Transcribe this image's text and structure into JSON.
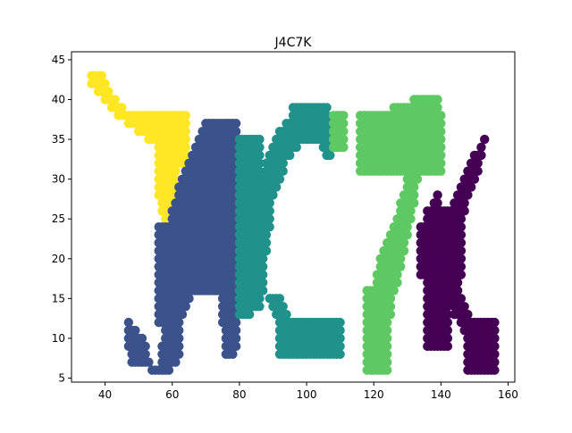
{
  "chart_data": {
    "type": "scatter",
    "title": "J4C7K",
    "xlabel": "",
    "ylabel": "",
    "xlim": [
      30,
      162
    ],
    "ylim": [
      4.5,
      46
    ],
    "xticks": [
      40,
      60,
      80,
      100,
      120,
      140,
      160
    ],
    "yticks": [
      5,
      10,
      15,
      20,
      25,
      30,
      35,
      40,
      45
    ],
    "grid": false,
    "legend": "none",
    "series": [
      {
        "color": "#fde725",
        "strokes": [
          {
            "shape": "poly",
            "pts": [
              [
                36,
                44
              ],
              [
                38,
                44
              ],
              [
                42,
                41
              ],
              [
                46,
                39
              ],
              [
                56,
                39
              ],
              [
                60,
                36
              ],
              [
                62,
                32
              ],
              [
                62,
                27
              ],
              [
                58,
                23
              ],
              [
                56,
                28
              ],
              [
                56,
                34
              ],
              [
                50,
                36
              ],
              [
                44,
                38
              ],
              [
                36,
                42
              ]
            ]
          },
          {
            "shape": "rect",
            "x0": 56,
            "x1": 64,
            "y0": 32,
            "y1": 38
          }
        ]
      },
      {
        "color": "#3b528b",
        "strokes": [
          {
            "shape": "poly",
            "pts": [
              [
                48,
                7
              ],
              [
                56,
                6
              ],
              [
                58,
                12
              ],
              [
                58,
                22
              ],
              [
                60,
                26
              ],
              [
                62,
                29
              ],
              [
                66,
                33
              ],
              [
                70,
                37
              ],
              [
                78,
                38
              ],
              [
                80,
                34
              ],
              [
                79,
                8
              ],
              [
                76,
                8
              ],
              [
                74,
                16
              ],
              [
                66,
                16
              ],
              [
                63,
                12
              ],
              [
                62,
                7
              ],
              [
                60,
                6
              ],
              [
                54,
                6
              ],
              [
                52,
                10
              ],
              [
                48,
                12
              ],
              [
                47,
                13
              ],
              [
                47,
                9
              ]
            ]
          },
          {
            "shape": "rect",
            "x0": 62,
            "x1": 80,
            "y0": 16,
            "y1": 22
          },
          {
            "shape": "rect",
            "x0": 56,
            "x1": 62,
            "y0": 12,
            "y1": 24
          },
          {
            "shape": "rect",
            "x0": 70,
            "x1": 79,
            "y0": 22,
            "y1": 37
          }
        ]
      },
      {
        "color": "#21918c",
        "strokes": [
          {
            "shape": "poly",
            "pts": [
              [
                80,
                14
              ],
              [
                80,
                20
              ],
              [
                84,
                27
              ],
              [
                88,
                32
              ],
              [
                92,
                36
              ],
              [
                98,
                39
              ],
              [
                104,
                39
              ],
              [
                108,
                37
              ],
              [
                108,
                33
              ],
              [
                106,
                33
              ],
              [
                104,
                35
              ],
              [
                98,
                34
              ],
              [
                94,
                32
              ],
              [
                90,
                27
              ],
              [
                88,
                20
              ],
              [
                88,
                16
              ],
              [
                92,
                12
              ],
              [
                94,
                8
              ],
              [
                110,
                8
              ],
              [
                110,
                12
              ],
              [
                106,
                13
              ],
              [
                100,
                13
              ],
              [
                98,
                10
              ],
              [
                94,
                14
              ],
              [
                92,
                16
              ],
              [
                86,
                15
              ],
              [
                84,
                13
              ],
              [
                80,
                13
              ]
            ]
          },
          {
            "shape": "rect",
            "x0": 80,
            "x1": 86,
            "y0": 14,
            "y1": 35
          },
          {
            "shape": "rect",
            "x0": 92,
            "x1": 110,
            "y0": 8,
            "y1": 12
          },
          {
            "shape": "rect",
            "x0": 96,
            "x1": 106,
            "y0": 36,
            "y1": 39
          }
        ]
      },
      {
        "color": "#5ec962",
        "strokes": [
          {
            "shape": "poly",
            "pts": [
              [
                116,
                38
              ],
              [
                126,
                39
              ],
              [
                132,
                40
              ],
              [
                138,
                41
              ],
              [
                140,
                41
              ],
              [
                140,
                37
              ],
              [
                136,
                35
              ],
              [
                134,
                32
              ],
              [
                132,
                26
              ],
              [
                130,
                22
              ],
              [
                128,
                18
              ],
              [
                126,
                15
              ],
              [
                124,
                10
              ],
              [
                123,
                7
              ],
              [
                120,
                6
              ],
              [
                118,
                8
              ],
              [
                118,
                12
              ],
              [
                120,
                16
              ],
              [
                122,
                20
              ],
              [
                126,
                24
              ],
              [
                128,
                27
              ],
              [
                130,
                30
              ],
              [
                134,
                34
              ],
              [
                134,
                36
              ],
              [
                126,
                35
              ],
              [
                122,
                33
              ],
              [
                118,
                31
              ],
              [
                116,
                31
              ]
            ]
          },
          {
            "shape": "rect",
            "x0": 116,
            "x1": 140,
            "y0": 31,
            "y1": 38
          },
          {
            "shape": "rect",
            "x0": 108,
            "x1": 111,
            "y0": 34,
            "y1": 38
          },
          {
            "shape": "rect",
            "x0": 118,
            "x1": 124,
            "y0": 6,
            "y1": 16
          }
        ]
      },
      {
        "color": "#440154",
        "strokes": [
          {
            "shape": "poly",
            "pts": [
              [
                138,
                10
              ],
              [
                138,
                27
              ],
              [
                140,
                29
              ],
              [
                140,
                23
              ],
              [
                144,
                27
              ],
              [
                150,
                33
              ],
              [
                154,
                36
              ],
              [
                152,
                32
              ],
              [
                148,
                27
              ],
              [
                146,
                23
              ],
              [
                144,
                20
              ],
              [
                146,
                16
              ],
              [
                150,
                12
              ],
              [
                154,
                8
              ],
              [
                156,
                7
              ],
              [
                152,
                6
              ],
              [
                148,
                10
              ],
              [
                144,
                13
              ],
              [
                142,
                17
              ],
              [
                140,
                19
              ],
              [
                140,
                10
              ],
              [
                136,
                9
              ]
            ]
          },
          {
            "shape": "rect",
            "x0": 136,
            "x1": 142,
            "y0": 9,
            "y1": 26
          },
          {
            "shape": "rect",
            "x0": 134,
            "x1": 146,
            "y0": 18,
            "y1": 24
          },
          {
            "shape": "rect",
            "x0": 148,
            "x1": 156,
            "y0": 6,
            "y1": 12
          }
        ]
      }
    ]
  }
}
